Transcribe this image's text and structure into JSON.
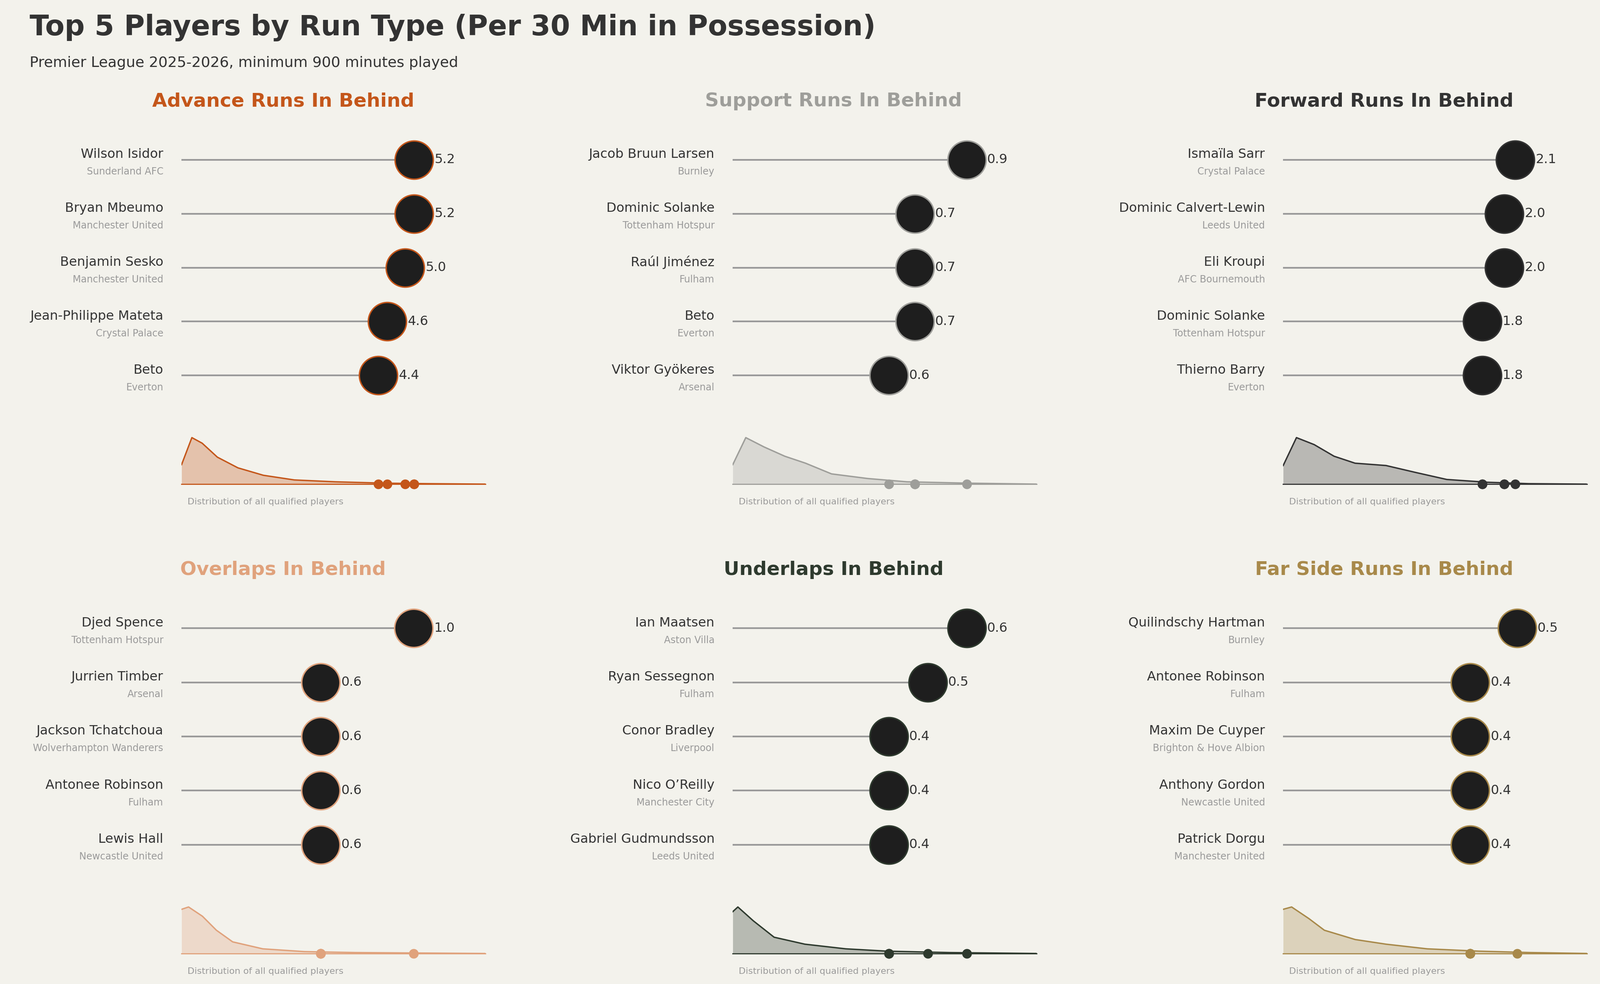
{
  "title": "Top 5 Players by Run Type (Per 30 Min in Possession)",
  "subtitle": "Premier League 2025-2026, minimum 900 minutes played",
  "chart_data": [
    {
      "type": "lollipop",
      "title": "Advance Runs In Behind",
      "color": "#c4561a",
      "categories": [
        "Wilson Isidor",
        "Bryan Mbeumo",
        "Benjamin Sesko",
        "Jean-Philippe Mateta",
        "Beto"
      ],
      "teams": [
        "Sunderland AFC",
        "Manchester United",
        "Manchester United",
        "Crystal Palace",
        "Everton"
      ],
      "values": [
        5.2,
        5.2,
        5.0,
        4.6,
        4.4
      ],
      "data_labels": true,
      "tick_labels": false,
      "xlim": [
        0,
        6.8
      ],
      "distribution": {
        "label": "Distribution of all qualified players",
        "x": [
          0,
          0.23,
          0.46,
          0.8,
          1.26,
          1.83,
          2.52,
          3.43,
          4.58,
          5.49,
          6.8
        ],
        "density": [
          0.42,
          1.0,
          0.88,
          0.58,
          0.35,
          0.19,
          0.09,
          0.05,
          0.02,
          0.01,
          0.0
        ],
        "ylim": [
          0,
          1.1
        ]
      }
    },
    {
      "type": "lollipop",
      "title": "Support Runs In Behind",
      "color": "#9e9e9a",
      "categories": [
        "Jacob Bruun Larsen",
        "Dominic Solanke",
        "Raúl Jiménez",
        "Beto",
        "Viktor Gyökeres"
      ],
      "teams": [
        "Burnley",
        "Tottenham Hotspur",
        "Fulham",
        "Everton",
        "Arsenal"
      ],
      "values": [
        0.9,
        0.7,
        0.7,
        0.7,
        0.6
      ],
      "data_labels": true,
      "tick_labels": false,
      "xlim": [
        0,
        1.17
      ],
      "distribution": {
        "label": "Distribution of all qualified players",
        "x": [
          0,
          0.05,
          0.12,
          0.2,
          0.28,
          0.38,
          0.52,
          0.67,
          0.91,
          1.17
        ],
        "density": [
          0.42,
          1.0,
          0.8,
          0.6,
          0.45,
          0.22,
          0.12,
          0.05,
          0.02,
          0.0
        ],
        "ylim": [
          0,
          1.1
        ]
      }
    },
    {
      "type": "lollipop",
      "title": "Forward Runs In Behind",
      "color": "#333333",
      "categories": [
        "Ismaïla Sarr",
        "Dominic Calvert-Lewin",
        "Eli Kroupi",
        "Dominic Solanke",
        "Thierno Barry"
      ],
      "teams": [
        "Crystal Palace",
        "Leeds United",
        "AFC Bournemouth",
        "Tottenham Hotspur",
        "Everton"
      ],
      "values": [
        2.1,
        2.0,
        2.0,
        1.8,
        1.8
      ],
      "data_labels": true,
      "tick_labels": false,
      "xlim": [
        0,
        2.75
      ],
      "distribution": {
        "label": "Distribution of all qualified players",
        "x": [
          0,
          0.12,
          0.28,
          0.46,
          0.65,
          0.93,
          1.2,
          1.48,
          1.85,
          2.22,
          2.74
        ],
        "density": [
          0.4,
          1.0,
          0.85,
          0.6,
          0.45,
          0.4,
          0.25,
          0.1,
          0.04,
          0.01,
          0.0
        ],
        "ylim": [
          0,
          1.1
        ]
      }
    },
    {
      "type": "lollipop",
      "title": "Overlaps In Behind",
      "color": "#e0a27c",
      "categories": [
        "Djed Spence",
        "Jurrien Timber",
        "Jackson Tchatchoua",
        "Antonee Robinson",
        "Lewis Hall"
      ],
      "teams": [
        "Tottenham Hotspur",
        "Arsenal",
        "Wolverhampton Wanderers",
        "Fulham",
        "Newcastle United"
      ],
      "values": [
        1.0,
        0.6,
        0.6,
        0.6,
        0.6
      ],
      "data_labels": true,
      "tick_labels": false,
      "xlim": [
        0,
        1.31
      ],
      "distribution": {
        "label": "Distribution of all qualified players",
        "x": [
          0,
          0.03,
          0.09,
          0.15,
          0.22,
          0.35,
          0.53,
          0.75,
          1.31
        ],
        "density": [
          0.95,
          1.0,
          0.8,
          0.5,
          0.25,
          0.1,
          0.04,
          0.02,
          0.0
        ],
        "ylim": [
          0,
          1.1
        ]
      }
    },
    {
      "type": "lollipop",
      "title": "Underlaps In Behind",
      "color": "#2e3a2e",
      "categories": [
        "Ian Maatsen",
        "Ryan Sessegnon",
        "Conor Bradley",
        "Nico O’Reilly",
        "Gabriel Gudmundsson"
      ],
      "teams": [
        "Aston Villa",
        "Fulham",
        "Liverpool",
        "Manchester City",
        "Leeds United"
      ],
      "values": [
        0.6,
        0.5,
        0.4,
        0.4,
        0.4
      ],
      "data_labels": true,
      "tick_labels": false,
      "xlim": [
        0,
        0.78
      ],
      "distribution": {
        "label": "Distribution of all qualified players",
        "x": [
          0,
          0.013,
          0.053,
          0.106,
          0.185,
          0.29,
          0.397,
          0.556,
          0.78
        ],
        "density": [
          0.9,
          1.0,
          0.7,
          0.35,
          0.2,
          0.1,
          0.05,
          0.02,
          0.0
        ],
        "ylim": [
          0,
          1.1
        ]
      }
    },
    {
      "type": "lollipop",
      "title": "Far Side Runs In Behind",
      "color": "#a8894a",
      "categories": [
        "Quilindschy Hartman",
        "Antonee Robinson",
        "Maxim De Cuyper",
        "Anthony Gordon",
        "Patrick Dorgu"
      ],
      "teams": [
        "Burnley",
        "Fulham",
        "Brighton & Hove Albion",
        "Newcastle United",
        "Manchester United"
      ],
      "values": [
        0.5,
        0.4,
        0.4,
        0.4,
        0.4
      ],
      "data_labels": true,
      "tick_labels": false,
      "xlim": [
        0,
        0.65
      ],
      "distribution": {
        "label": "Distribution of all qualified players",
        "x": [
          0,
          0.018,
          0.055,
          0.088,
          0.154,
          0.22,
          0.308,
          0.419,
          0.529,
          0.652
        ],
        "density": [
          0.95,
          1.0,
          0.75,
          0.5,
          0.3,
          0.2,
          0.1,
          0.05,
          0.02,
          0.0
        ],
        "ylim": [
          0,
          1.1
        ]
      }
    }
  ]
}
